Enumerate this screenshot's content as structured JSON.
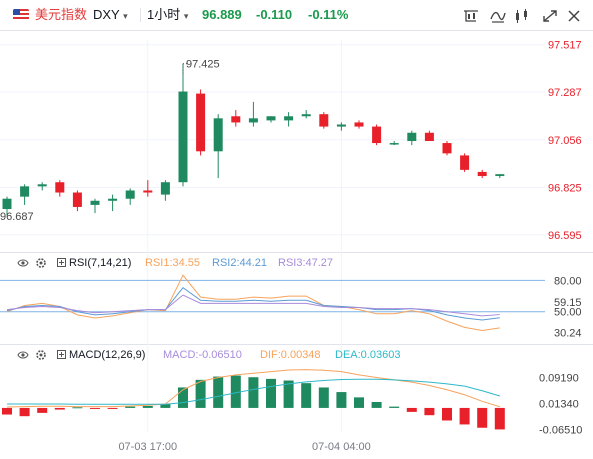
{
  "header": {
    "name": "美元指数",
    "symbol": "DXY",
    "interval": "1小时",
    "price": "96.889",
    "change": "-0.110",
    "change_pct": "-0.11%",
    "icons": [
      "chart-type-icon",
      "indicators-icon",
      "compare-icon",
      "tools-icon",
      "fullscreen-icon",
      "settings-icon"
    ]
  },
  "colors": {
    "up": "#1f8a5f",
    "down": "#e8202a",
    "rsi": "#f7a35c",
    "rsi2": "#5b9bd5",
    "rsi3": "#a78bdb",
    "macd": "#a78bdb",
    "dif": "#f7a35c",
    "dea": "#2eb8c9",
    "grid": "#f0f3fa",
    "change": "#1a9a4c"
  },
  "chart_data": [
    {
      "type": "candlestick",
      "title": "美元指数 DXY 1小时",
      "yticks": [
        "97.517",
        "97.287",
        "97.056",
        "96.825",
        "96.595"
      ],
      "ylim": [
        96.56,
        97.54
      ],
      "xticks": [
        {
          "label": "07-03 17:00",
          "index": 8
        },
        {
          "label": "07-04 04:00",
          "index": 19
        }
      ],
      "annotations": [
        {
          "label": "97.425",
          "value": 97.425,
          "index": 10
        },
        {
          "label": "96.687",
          "value": 96.687,
          "index": 0
        }
      ],
      "candles": [
        {
          "o": 96.72,
          "h": 96.78,
          "l": 96.69,
          "c": 96.77
        },
        {
          "o": 96.78,
          "h": 96.84,
          "l": 96.74,
          "c": 96.83
        },
        {
          "o": 96.83,
          "h": 96.85,
          "l": 96.81,
          "c": 96.84
        },
        {
          "o": 96.85,
          "h": 96.86,
          "l": 96.78,
          "c": 96.8
        },
        {
          "o": 96.8,
          "h": 96.81,
          "l": 96.71,
          "c": 96.73
        },
        {
          "o": 96.74,
          "h": 96.77,
          "l": 96.7,
          "c": 96.76
        },
        {
          "o": 96.76,
          "h": 96.79,
          "l": 96.71,
          "c": 96.77
        },
        {
          "o": 96.77,
          "h": 96.82,
          "l": 96.74,
          "c": 96.81
        },
        {
          "o": 96.81,
          "h": 96.86,
          "l": 96.78,
          "c": 96.8
        },
        {
          "o": 96.79,
          "h": 96.86,
          "l": 96.76,
          "c": 96.85
        },
        {
          "o": 96.85,
          "h": 97.42,
          "l": 96.83,
          "c": 97.29
        },
        {
          "o": 97.28,
          "h": 97.3,
          "l": 96.98,
          "c": 97.0
        },
        {
          "o": 97.0,
          "h": 97.18,
          "l": 96.87,
          "c": 97.16
        },
        {
          "o": 97.17,
          "h": 97.2,
          "l": 97.12,
          "c": 97.14
        },
        {
          "o": 97.14,
          "h": 97.24,
          "l": 97.12,
          "c": 97.16
        },
        {
          "o": 97.15,
          "h": 97.17,
          "l": 97.14,
          "c": 97.17
        },
        {
          "o": 97.15,
          "h": 97.19,
          "l": 97.12,
          "c": 97.17
        },
        {
          "o": 97.17,
          "h": 97.2,
          "l": 97.16,
          "c": 97.18
        },
        {
          "o": 97.18,
          "h": 97.19,
          "l": 97.11,
          "c": 97.12
        },
        {
          "o": 97.12,
          "h": 97.14,
          "l": 97.1,
          "c": 97.13
        },
        {
          "o": 97.14,
          "h": 97.15,
          "l": 97.11,
          "c": 97.12
        },
        {
          "o": 97.12,
          "h": 97.13,
          "l": 97.03,
          "c": 97.04
        },
        {
          "o": 97.04,
          "h": 97.05,
          "l": 97.03,
          "c": 97.04
        },
        {
          "o": 97.05,
          "h": 97.1,
          "l": 97.03,
          "c": 97.09
        },
        {
          "o": 97.09,
          "h": 97.1,
          "l": 97.05,
          "c": 97.05
        },
        {
          "o": 97.04,
          "h": 97.05,
          "l": 96.98,
          "c": 96.99
        },
        {
          "o": 96.98,
          "h": 96.99,
          "l": 96.9,
          "c": 96.91
        },
        {
          "o": 96.9,
          "h": 96.91,
          "l": 96.87,
          "c": 96.88
        },
        {
          "o": 96.88,
          "h": 96.89,
          "l": 96.87,
          "c": 96.889
        }
      ]
    },
    {
      "type": "line",
      "title": "RSI(7,14,21)",
      "labels": {
        "name": "RSI(7,14,21)",
        "rsi1": "RSI1:34.55",
        "rsi2": "RSI2:44.21",
        "rsi3": "RSI3:47.27"
      },
      "yticks": [
        "80.00",
        "59.15",
        "50.00",
        "30.24"
      ],
      "ylim": [
        20,
        90
      ],
      "refs": [
        80,
        50
      ],
      "series": [
        {
          "name": "RSI1",
          "values": [
            50,
            56,
            58,
            55,
            47,
            44,
            46,
            49,
            52,
            51,
            85,
            64,
            62,
            62,
            64,
            63,
            65,
            65,
            56,
            55,
            52,
            48,
            48,
            51,
            48,
            41,
            35,
            32,
            34.55
          ]
        },
        {
          "name": "RSI2",
          "values": [
            51,
            55,
            56,
            55,
            50,
            47,
            48,
            50,
            52,
            52,
            73,
            61,
            60,
            60,
            61,
            60,
            61,
            61,
            56,
            55,
            54,
            52,
            52,
            53,
            51,
            47,
            44,
            42,
            44.21
          ]
        },
        {
          "name": "RSI3",
          "values": [
            52,
            54,
            55,
            54,
            51,
            49,
            50,
            51,
            52,
            52,
            66,
            58,
            58,
            58,
            58,
            58,
            58,
            58,
            55,
            54,
            54,
            53,
            53,
            53,
            52,
            50,
            48,
            46,
            47.27
          ]
        }
      ]
    },
    {
      "type": "bar",
      "title": "MACD(12,26,9)",
      "labels": {
        "name": "MACD(12,26,9)",
        "macd": "MACD:-0.06510",
        "dif": "DIF:0.00348",
        "dea": "DEA:0.03603"
      },
      "yticks": [
        "0.09190",
        "0.01340",
        "-0.06510"
      ],
      "ylim": [
        -0.085,
        0.13
      ],
      "series": [
        {
          "name": "MACD",
          "values": [
            -0.02,
            -0.025,
            -0.015,
            -0.005,
            0.002,
            -0.003,
            -0.003,
            0.004,
            0.006,
            0.012,
            0.062,
            0.085,
            0.095,
            0.098,
            0.093,
            0.088,
            0.083,
            0.075,
            0.062,
            0.048,
            0.032,
            0.018,
            0.004,
            -0.012,
            -0.022,
            -0.038,
            -0.05,
            -0.06,
            -0.0651
          ]
        },
        {
          "name": "DIF",
          "values": [
            0.003,
            0.004,
            0.005,
            0.005,
            0.004,
            0.004,
            0.004,
            0.006,
            0.008,
            0.012,
            0.055,
            0.08,
            0.092,
            0.1,
            0.105,
            0.11,
            0.115,
            0.116,
            0.114,
            0.11,
            0.1,
            0.092,
            0.085,
            0.078,
            0.068,
            0.055,
            0.04,
            0.02,
            0.00348
          ]
        },
        {
          "name": "DEA",
          "values": [
            0.012,
            0.012,
            0.012,
            0.012,
            0.011,
            0.011,
            0.011,
            0.011,
            0.011,
            0.011,
            0.016,
            0.025,
            0.035,
            0.046,
            0.056,
            0.065,
            0.073,
            0.079,
            0.083,
            0.086,
            0.087,
            0.087,
            0.085,
            0.082,
            0.078,
            0.073,
            0.066,
            0.052,
            0.03603
          ]
        }
      ]
    }
  ]
}
